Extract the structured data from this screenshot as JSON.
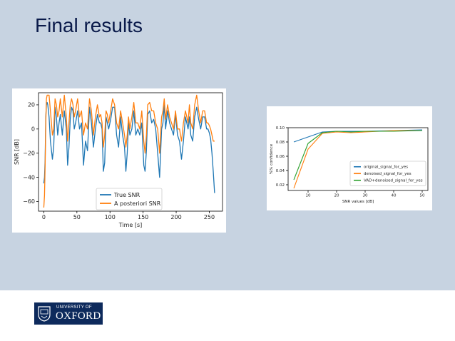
{
  "slide": {
    "title": "Final results"
  },
  "logo": {
    "line1": "UNIVERSITY OF",
    "line2": "OXFORD",
    "background": "#0d2a5c"
  },
  "colors": {
    "slide_background": "#c7d3e1",
    "title": "#0a1a4a",
    "series_blue": "#1f77b4",
    "series_orange": "#ff7f0e",
    "series_green": "#2ca02c"
  },
  "chart_data": [
    {
      "type": "line",
      "title": "",
      "xlabel": "Time [s]",
      "ylabel": "SNR [dB]",
      "xlim": [
        -8,
        270
      ],
      "ylim": [
        -68,
        30
      ],
      "xticks": [
        0,
        50,
        100,
        150,
        200,
        250
      ],
      "yticks": [
        20,
        0,
        -20,
        -40,
        -60
      ],
      "grid": false,
      "legend_position": "lower-center",
      "series": [
        {
          "name": "True SNR",
          "color": "#1f77b4",
          "x": [
            0,
            1,
            2,
            3,
            4,
            5,
            6,
            8,
            10,
            13,
            15,
            17,
            19,
            21,
            23,
            25,
            28,
            31,
            34,
            36,
            38,
            40,
            42,
            44,
            46,
            48,
            51,
            54,
            57,
            60,
            63,
            66,
            69,
            72,
            75,
            78,
            81,
            84,
            86,
            88,
            90,
            92,
            94,
            96,
            98,
            101,
            104,
            107,
            110,
            113,
            116,
            119,
            122,
            124,
            126,
            128,
            130,
            133,
            136,
            139,
            142,
            145,
            148,
            151,
            153,
            155,
            157,
            160,
            163,
            166,
            169,
            172,
            175,
            178,
            180,
            182,
            184,
            187,
            190,
            193,
            196,
            199,
            202,
            205,
            208,
            211,
            214,
            216,
            218,
            220,
            222,
            225,
            228,
            231,
            234,
            237,
            240,
            243,
            246,
            248,
            250,
            252,
            254,
            256,
            258
          ],
          "values": [
            -45,
            -40,
            -25,
            10,
            20,
            22,
            20,
            10,
            -10,
            -25,
            -15,
            18,
            10,
            -5,
            5,
            12,
            -5,
            15,
            0,
            -30,
            -15,
            8,
            18,
            15,
            0,
            5,
            15,
            0,
            5,
            -30,
            -10,
            -18,
            18,
            5,
            -15,
            0,
            12,
            5,
            5,
            0,
            -35,
            -28,
            10,
            5,
            0,
            8,
            18,
            18,
            -5,
            -15,
            10,
            -5,
            -15,
            -35,
            -20,
            5,
            -5,
            0,
            15,
            -5,
            0,
            -5,
            5,
            -30,
            -35,
            -18,
            12,
            15,
            5,
            8,
            0,
            -20,
            -40,
            0,
            5,
            20,
            0,
            15,
            5,
            0,
            -5,
            12,
            -5,
            -10,
            -25,
            -10,
            10,
            5,
            0,
            10,
            -5,
            -10,
            10,
            18,
            8,
            0,
            10,
            10,
            0,
            0,
            -3,
            -8,
            -20,
            -35,
            -53
          ]
        },
        {
          "name": "A posteriori SNR",
          "color": "#ff7f0e",
          "x": [
            0,
            1,
            2,
            3,
            4,
            5,
            6,
            8,
            10,
            13,
            15,
            17,
            19,
            21,
            23,
            25,
            28,
            31,
            34,
            36,
            38,
            40,
            42,
            44,
            46,
            48,
            51,
            54,
            57,
            60,
            63,
            66,
            69,
            72,
            75,
            78,
            81,
            84,
            86,
            88,
            90,
            92,
            94,
            96,
            98,
            101,
            104,
            107,
            110,
            113,
            116,
            119,
            122,
            124,
            126,
            128,
            130,
            133,
            136,
            139,
            142,
            145,
            148,
            151,
            153,
            155,
            157,
            160,
            163,
            166,
            169,
            172,
            175,
            178,
            180,
            182,
            184,
            187,
            190,
            193,
            196,
            199,
            202,
            205,
            208,
            211,
            214,
            216,
            218,
            220,
            222,
            225,
            228,
            231,
            234,
            237,
            240,
            243,
            246,
            248,
            250,
            252,
            254,
            256,
            258
          ],
          "values": [
            -65,
            -55,
            -30,
            5,
            25,
            28,
            28,
            28,
            15,
            -5,
            0,
            25,
            20,
            10,
            15,
            25,
            10,
            28,
            10,
            -10,
            5,
            20,
            25,
            20,
            10,
            15,
            25,
            10,
            15,
            -5,
            5,
            0,
            25,
            15,
            -5,
            10,
            20,
            10,
            12,
            5,
            -15,
            -5,
            15,
            12,
            5,
            15,
            25,
            20,
            5,
            0,
            15,
            5,
            -5,
            -15,
            -5,
            10,
            0,
            10,
            22,
            5,
            5,
            0,
            15,
            -10,
            -20,
            -5,
            20,
            22,
            15,
            15,
            5,
            0,
            -20,
            10,
            15,
            25,
            8,
            20,
            10,
            5,
            0,
            15,
            0,
            0,
            -10,
            5,
            15,
            10,
            5,
            20,
            5,
            0,
            20,
            28,
            15,
            5,
            15,
            15,
            5,
            5,
            3,
            0,
            -5,
            -10,
            -10
          ]
        }
      ]
    },
    {
      "type": "line",
      "title": "",
      "xlabel": "SNR values [dB]",
      "ylabel": "%% confidence",
      "xlim": [
        3,
        52
      ],
      "ylim": [
        0.012,
        0.1
      ],
      "xticks": [
        10,
        20,
        30,
        40,
        50
      ],
      "yticks": [
        0.1,
        0.08,
        0.06,
        0.04,
        0.02
      ],
      "ytick_labels": [
        "0.10",
        "0.08",
        "0.06",
        "0.04",
        "0.02"
      ],
      "grid": false,
      "legend_position": "lower-right",
      "series": [
        {
          "name": "original_signal_for_yes",
          "color": "#1f77b4",
          "x": [
            5,
            10,
            15,
            20,
            25,
            30,
            40,
            50
          ],
          "values": [
            0.08,
            0.087,
            0.094,
            0.095,
            0.095,
            0.095,
            0.096,
            0.097
          ]
        },
        {
          "name": "denoised_signal_for_yes",
          "color": "#ff7f0e",
          "x": [
            5,
            10,
            15,
            20,
            25,
            30,
            40,
            50
          ],
          "values": [
            0.015,
            0.07,
            0.092,
            0.094,
            0.093,
            0.094,
            0.096,
            0.096
          ]
        },
        {
          "name": "VAD+denoised_signal_for_yes",
          "color": "#2ca02c",
          "x": [
            5,
            10,
            15,
            20,
            25,
            30,
            40,
            50
          ],
          "values": [
            0.027,
            0.078,
            0.093,
            0.095,
            0.094,
            0.095,
            0.095,
            0.096
          ]
        }
      ]
    }
  ]
}
